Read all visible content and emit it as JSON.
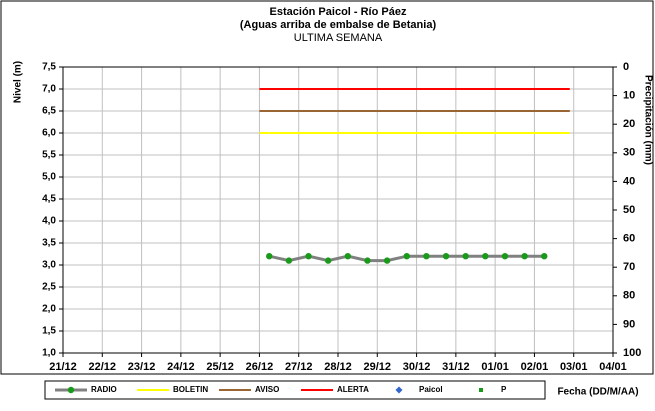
{
  "chart_data": {
    "type": "line",
    "title": "Estación Paicol - Río Páez",
    "subtitle": "(Aguas arriba de embalse de Betania)",
    "period": "ULTIMA SEMANA",
    "ylabel": "Nivel (m)",
    "y2label": "Precipitación (mm)",
    "xlabel": "Fecha (DD/M/AA)",
    "xlim": [
      0,
      14
    ],
    "xticks": [
      {
        "value": 0,
        "label": "21/12"
      },
      {
        "value": 1,
        "label": "22/12"
      },
      {
        "value": 2,
        "label": "23/12"
      },
      {
        "value": 3,
        "label": "24/12"
      },
      {
        "value": 4,
        "label": "25/12"
      },
      {
        "value": 5,
        "label": "26/12"
      },
      {
        "value": 6,
        "label": "27/12"
      },
      {
        "value": 7,
        "label": "28/12"
      },
      {
        "value": 8,
        "label": "29/12"
      },
      {
        "value": 9,
        "label": "30/12"
      },
      {
        "value": 10,
        "label": "31/12"
      },
      {
        "value": 11,
        "label": "01/01"
      },
      {
        "value": 12,
        "label": "02/01"
      },
      {
        "value": 13,
        "label": "03/01"
      },
      {
        "value": 14,
        "label": "04/01"
      }
    ],
    "ylim": [
      1.0,
      7.5
    ],
    "yticks": [
      {
        "value": 1.0,
        "label": "1,0"
      },
      {
        "value": 1.5,
        "label": "1,5"
      },
      {
        "value": 2.0,
        "label": "2,0"
      },
      {
        "value": 2.5,
        "label": "2,5"
      },
      {
        "value": 3.0,
        "label": "3,0"
      },
      {
        "value": 3.5,
        "label": "3,5"
      },
      {
        "value": 4.0,
        "label": "4,0"
      },
      {
        "value": 4.5,
        "label": "4,5"
      },
      {
        "value": 5.0,
        "label": "5,0"
      },
      {
        "value": 5.5,
        "label": "5,5"
      },
      {
        "value": 6.0,
        "label": "6,0"
      },
      {
        "value": 6.5,
        "label": "6,5"
      },
      {
        "value": 7.0,
        "label": "7,0"
      },
      {
        "value": 7.5,
        "label": "7,5"
      }
    ],
    "y2lim": [
      100,
      0
    ],
    "y2ticks": [
      0,
      10,
      20,
      30,
      40,
      50,
      60,
      70,
      80,
      90,
      100
    ],
    "grid": true,
    "series": [
      {
        "name": "RADIO",
        "color": "#808080",
        "marker": "circle",
        "marker_color": "#1a9a1a",
        "x": [
          5.25,
          5.75,
          6.25,
          6.75,
          7.25,
          7.75,
          8.25,
          8.75,
          9.25,
          9.75,
          10.25,
          10.75,
          11.25,
          11.75,
          12.25
        ],
        "values": [
          3.2,
          3.1,
          3.2,
          3.1,
          3.2,
          3.1,
          3.1,
          3.2,
          3.2,
          3.2,
          3.2,
          3.2,
          3.2,
          3.2,
          3.2
        ]
      },
      {
        "name": "BOLETIN",
        "color": "#ffff00",
        "x": [
          5.0,
          12.9
        ],
        "values": [
          6.0,
          6.0
        ]
      },
      {
        "name": "AVISO",
        "color": "#996633",
        "x": [
          5.0,
          12.9
        ],
        "values": [
          6.5,
          6.5
        ]
      },
      {
        "name": "ALERTA",
        "color": "#ff0000",
        "x": [
          5.0,
          12.9
        ],
        "values": [
          7.0,
          7.0
        ]
      },
      {
        "name": "Paicol",
        "color": "#3366cc",
        "marker": "diamond",
        "x": [],
        "values": []
      },
      {
        "name": "P",
        "color": "#1a9a1a",
        "marker": "square",
        "axis": "y2",
        "x": [],
        "values": []
      }
    ]
  }
}
